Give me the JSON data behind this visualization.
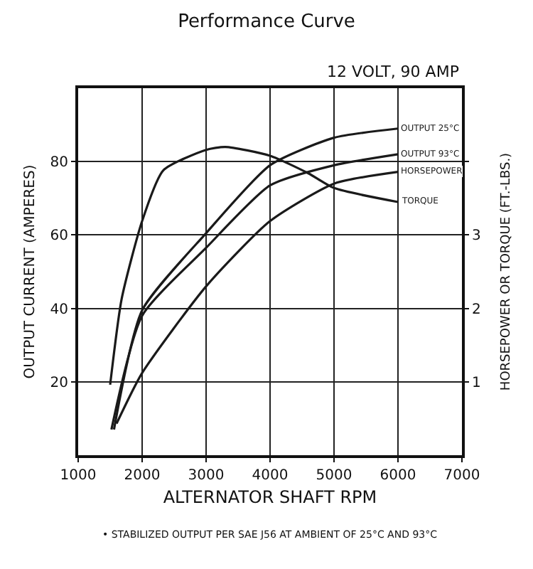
{
  "chart_data": {
    "type": "line",
    "title": "Performance Curve",
    "subtitle": "12 VOLT, 90 AMP",
    "xlabel": "ALTERNATOR SHAFT RPM",
    "ylabel": "OUTPUT CURRENT (AMPERES)",
    "y2label": "HORSEPOWER OR TORQUE (FT.-LBS.)",
    "annotations": [
      "• STABILIZED OUTPUT PER SAE J56 AT AMBIENT OF 25°C AND 93°C"
    ],
    "xlim": [
      1000,
      7000
    ],
    "xticks": [
      1000,
      2000,
      3000,
      4000,
      5000,
      6000,
      7000
    ],
    "ylim": [
      0,
      100
    ],
    "yticks": [
      20,
      40,
      60,
      80
    ],
    "y2lim": [
      0,
      5
    ],
    "y2ticks": [
      1,
      2,
      3,
      {
        "value": 4,
        "label": null
      }
    ],
    "grid": true,
    "legend": false,
    "marker": "none",
    "line_style": "solid",
    "series": [
      {
        "name": "OUTPUT 25°C",
        "color": "#1a1a1a",
        "x": [
          1560,
          2000,
          3000,
          4000,
          5000,
          6000
        ],
        "values": [
          7,
          39.5,
          60.5,
          79,
          86.5,
          89
        ]
      },
      {
        "name": "OUTPUT 93°C",
        "color": "#1a1a1a",
        "x": [
          1520,
          2000,
          3000,
          4000,
          5000,
          6000
        ],
        "values": [
          7,
          38,
          56.5,
          73.5,
          79,
          82
        ]
      },
      {
        "name": "HORSEPOWER",
        "color": "#1a1a1a",
        "axis": "y2",
        "x": [
          1600,
          2000,
          3000,
          4000,
          5000,
          6000
        ],
        "values": [
          0.43,
          1.12,
          2.3,
          3.19,
          3.7,
          3.86
        ]
      },
      {
        "name": "TORQUE",
        "color": "#1a1a1a",
        "axis": "y2",
        "x": [
          1500,
          1680,
          2000,
          2330,
          3000,
          3300,
          4000,
          4600,
          5000,
          6000
        ],
        "values": [
          0.96,
          2.13,
          3.19,
          3.88,
          4.16,
          4.2,
          4.08,
          3.84,
          3.64,
          3.45
        ]
      }
    ]
  }
}
